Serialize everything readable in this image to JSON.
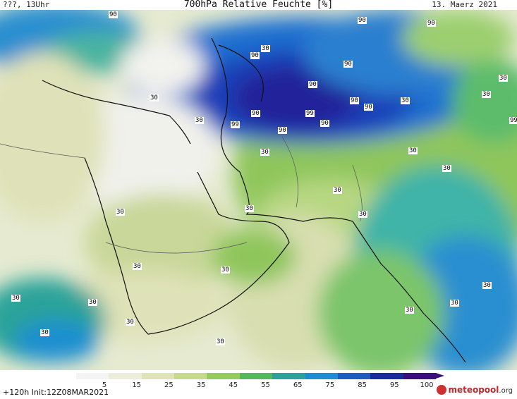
{
  "header": {
    "location_time": "???, 13Uhr",
    "title": "700hPa Relative Feuchte [%]",
    "date": "13. Maerz 2021"
  },
  "legend": {
    "ticks": [
      "5",
      "15",
      "25",
      "35",
      "45",
      "55",
      "65",
      "75",
      "85",
      "95",
      "100"
    ],
    "colors": [
      "#f4f4f4",
      "#ecedda",
      "#e0e3b8",
      "#c7d98c",
      "#96c95e",
      "#55b85f",
      "#2aa39a",
      "#1b8fd0",
      "#1e5bc4",
      "#1a2aa0",
      "#3b0f7a"
    ]
  },
  "footer": {
    "init": "+120h  Init:12Z08MAR2021",
    "logo_main": "meteopool",
    "logo_tld": ".org"
  },
  "contour_labels": [
    "90",
    "90",
    "90",
    "90",
    "90",
    "99",
    "90",
    "90",
    "99",
    "90",
    "90",
    "90",
    "99",
    "90",
    "30",
    "30",
    "30",
    "30",
    "30",
    "30",
    "30",
    "30",
    "30",
    "30",
    "30",
    "30",
    "30",
    "30",
    "30",
    "30",
    "30",
    "30",
    "30",
    "30",
    "30",
    "30",
    "30"
  ]
}
